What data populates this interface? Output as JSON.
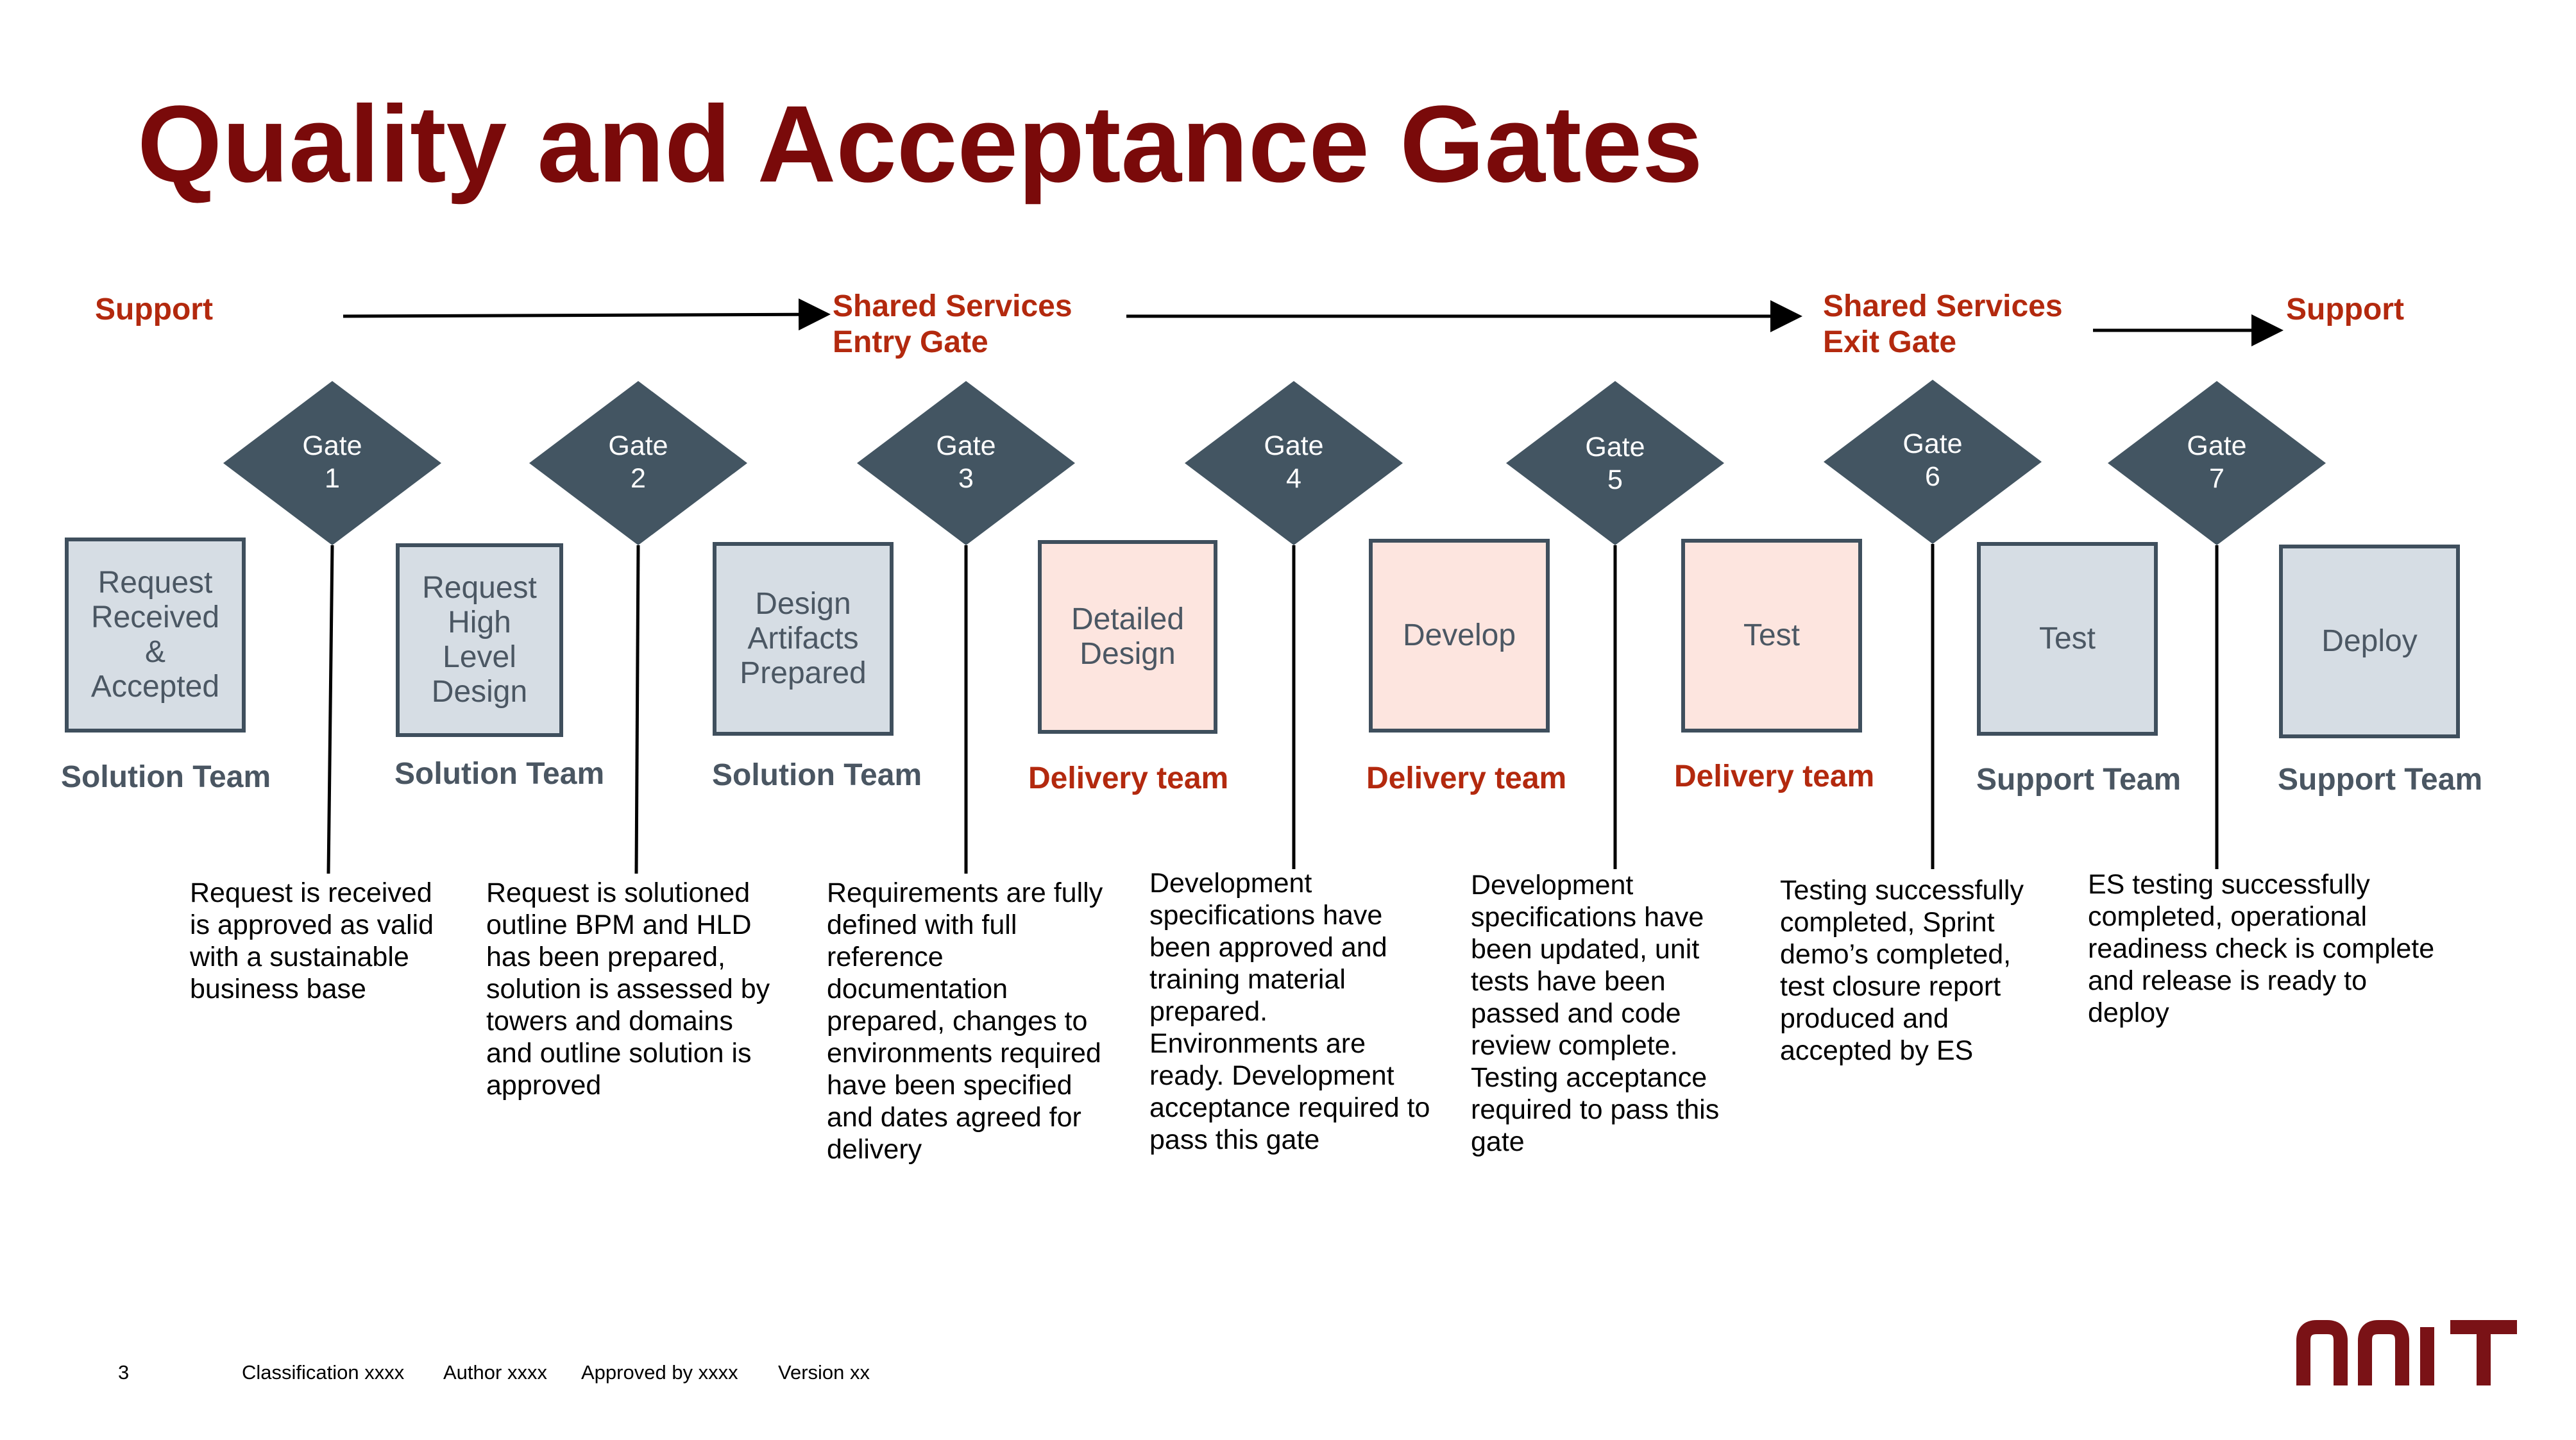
{
  "title": "Quality and Acceptance Gates",
  "phases": [
    "Support",
    "Shared Services\nEntry Gate",
    "Shared Services\nExit Gate",
    "Support"
  ],
  "gates": [
    {
      "label": "Gate\n1"
    },
    {
      "label": "Gate\n2"
    },
    {
      "label": "Gate\n3"
    },
    {
      "label": "Gate\n4"
    },
    {
      "label": "Gate\n5"
    },
    {
      "label": "Gate\n6"
    },
    {
      "label": "Gate\n7"
    }
  ],
  "boxes": [
    {
      "label": "Request\nReceived\n&\nAccepted",
      "team": "Solution Team",
      "style": "grey"
    },
    {
      "label": "Request\nHigh\nLevel\nDesign",
      "team": "Solution Team",
      "style": "grey"
    },
    {
      "label": "Design\nArtifacts\nPrepared",
      "team": "Solution Team",
      "style": "grey"
    },
    {
      "label": "Detailed\nDesign",
      "team": "Delivery team",
      "style": "pink"
    },
    {
      "label": "Develop",
      "team": "Delivery team",
      "style": "pink"
    },
    {
      "label": "Test",
      "team": "Delivery team",
      "style": "pink"
    },
    {
      "label": "Test",
      "team": "Support Team",
      "style": "grey"
    },
    {
      "label": "Deploy",
      "team": "Support Team",
      "style": "grey"
    }
  ],
  "descriptions": [
    "Request is received is approved as valid with a sustainable business base",
    "Request is solutioned outline BPM and HLD has been prepared, solution is assessed by towers and domains and outline solution is approved",
    "Requirements are fully defined with full reference documentation prepared, changes to environments required have been specified and dates agreed for delivery",
    "Development specifications have been approved and training material prepared. Environments are ready. Development acceptance required to pass this gate",
    "Development specifications have been updated, unit tests have been passed and code review complete. Testing acceptance required to pass this gate",
    "Testing successfully completed, Sprint demo’s completed, test closure report produced and accepted by ES",
    "ES testing successfully completed, operational readiness check is complete and release is ready to deploy"
  ],
  "footer": {
    "page": "3",
    "classification": "Classification xxxx",
    "author": "Author xxxx",
    "approved": "Approved by xxxx",
    "version": "Version xx"
  },
  "logo": "NNIT",
  "colors": {
    "title": "#7a0a0a",
    "phase": "#b3290e",
    "gate": "#435562",
    "box_grey": "#d6dde4",
    "box_pink": "#fde5df",
    "box_border": "#3f4f5d",
    "team_grey": "#4a5662",
    "team_red": "#b3290e",
    "logo": "#7a1216"
  }
}
